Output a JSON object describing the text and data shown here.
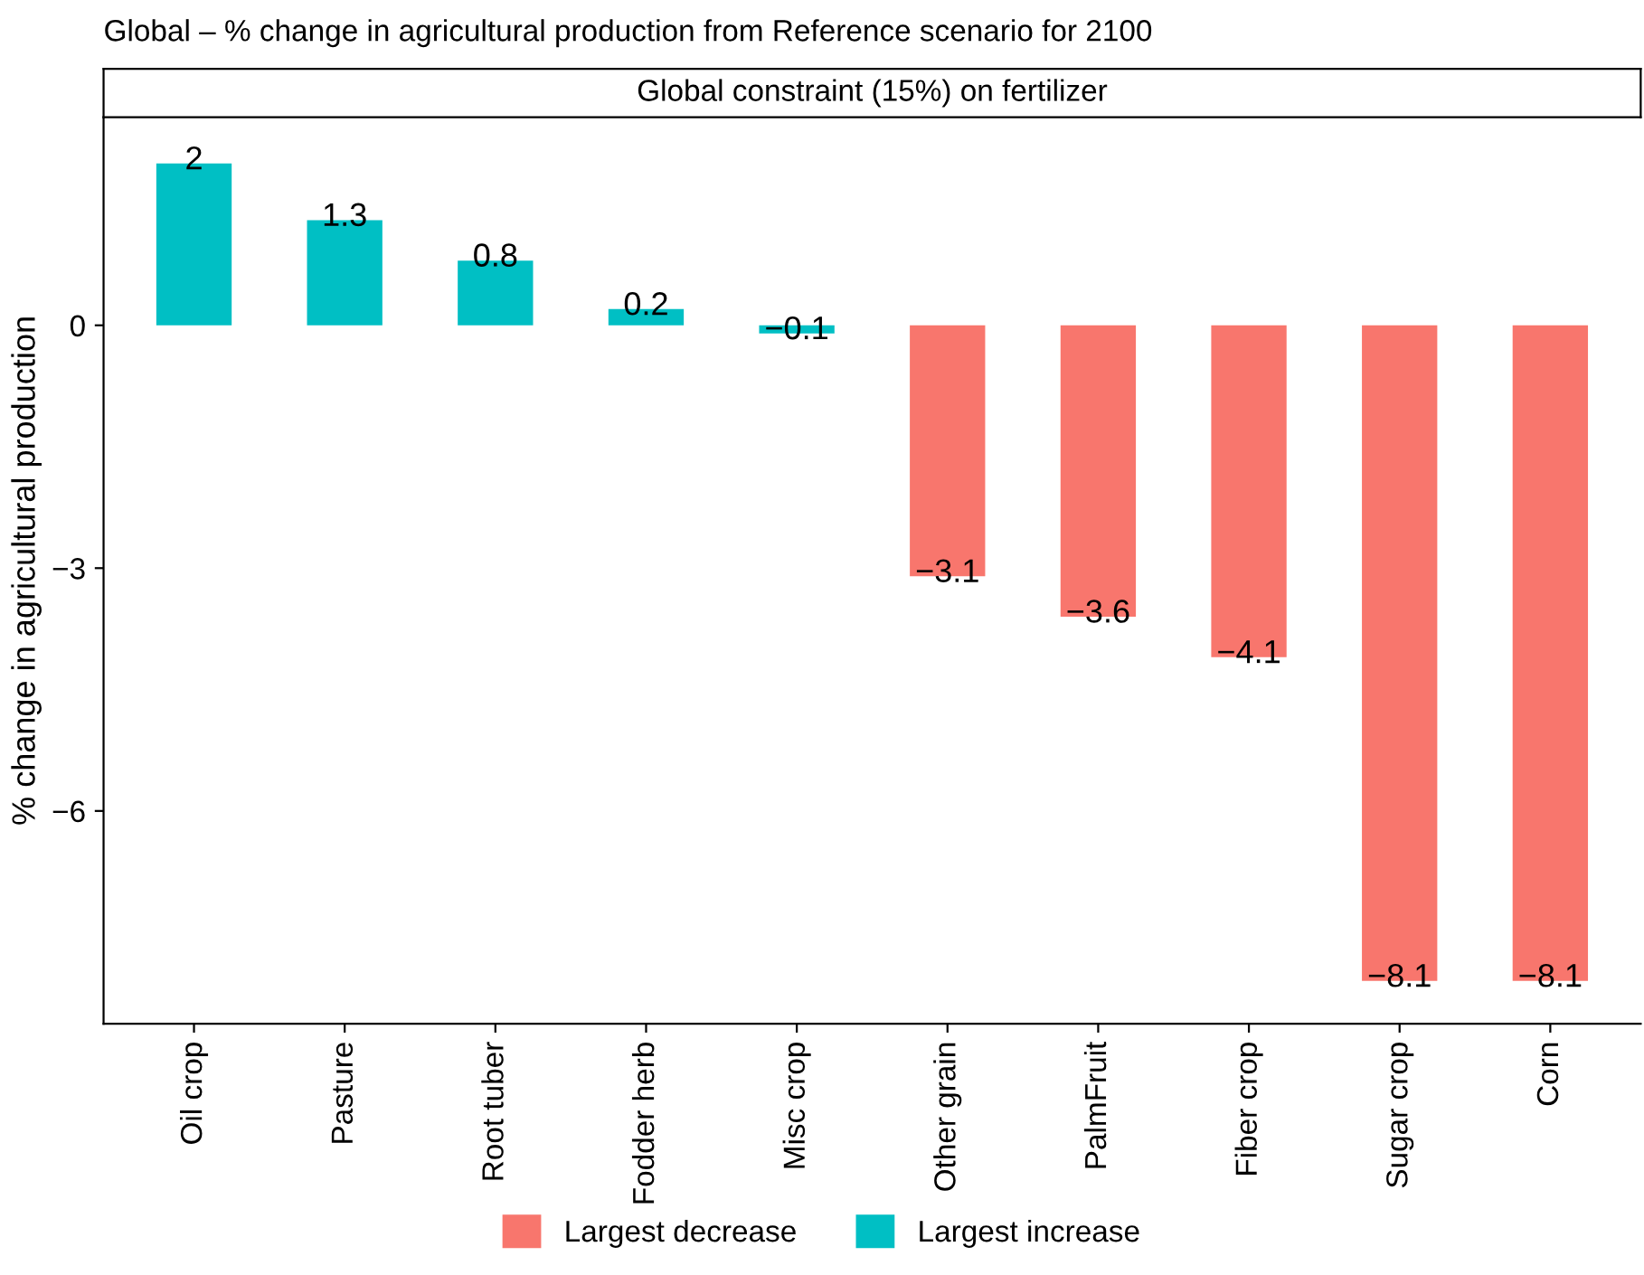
{
  "chart_data": {
    "type": "bar",
    "title": "Global – % change in agricultural production from Reference scenario for 2100",
    "subtitle": "Global constraint (15%) on fertilizer",
    "ylabel": "% change in agricultural production",
    "categories": [
      "Oil crop",
      "Pasture",
      "Root tuber",
      "Fodder herb",
      "Misc crop",
      "Other grain",
      "PalmFruit",
      "Fiber crop",
      "Sugar crop",
      "Corn"
    ],
    "series": [
      {
        "name": "Largest decrease",
        "color": "#f8766d",
        "values": [
          null,
          null,
          null,
          null,
          null,
          -3.1,
          -3.6,
          -4.1,
          -8.1,
          -8.1
        ]
      },
      {
        "name": "Largest increase",
        "color": "#00bfc4",
        "values": [
          2,
          1.3,
          0.8,
          0.2,
          -0.1,
          null,
          null,
          null,
          null,
          null
        ]
      }
    ],
    "ylim": [
      -8.63,
      2.57
    ],
    "yticks": [
      {
        "value": -6,
        "label": "−6"
      },
      {
        "value": -3,
        "label": "−3"
      },
      0
    ],
    "data_labels": true,
    "legend": "bottom",
    "grid": false
  }
}
